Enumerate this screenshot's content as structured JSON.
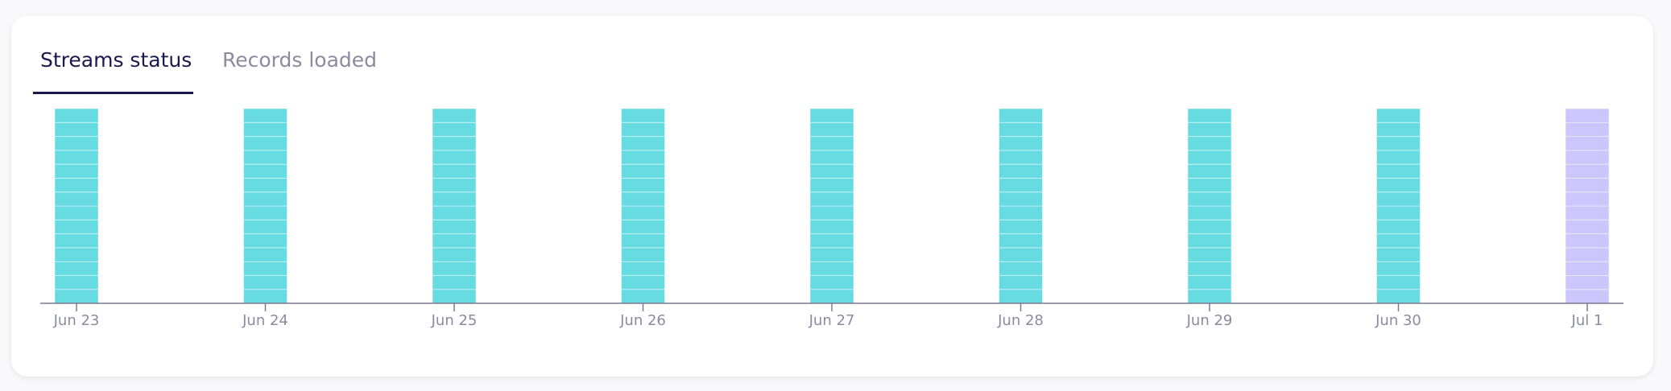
{
  "tabs": [
    "Streams status",
    "Records loaded"
  ],
  "chart_data": {
    "type": "bar",
    "stacked": true,
    "categories": [
      "Jun 23",
      "Jun 24",
      "Jun 25",
      "Jun 26",
      "Jun 27",
      "Jun 28",
      "Jun 29",
      "Jun 30",
      "Jul 1"
    ],
    "category_colors": [
      "#67dbe2",
      "#67dbe2",
      "#67dbe2",
      "#67dbe2",
      "#67dbe2",
      "#67dbe2",
      "#67dbe2",
      "#67dbe2",
      "#cbc6fb"
    ],
    "series": [
      {
        "values": [
          1,
          1,
          1,
          1,
          1,
          1,
          1,
          1,
          1
        ]
      },
      {
        "values": [
          1,
          1,
          1,
          1,
          1,
          1,
          1,
          1,
          1
        ]
      },
      {
        "values": [
          1,
          1,
          1,
          1,
          1,
          1,
          1,
          1,
          1
        ]
      },
      {
        "values": [
          1,
          1,
          1,
          1,
          1,
          1,
          1,
          1,
          1
        ]
      },
      {
        "values": [
          1,
          1,
          1,
          1,
          1,
          1,
          1,
          1,
          1
        ]
      },
      {
        "values": [
          1,
          1,
          1,
          1,
          1,
          1,
          1,
          1,
          1
        ]
      },
      {
        "values": [
          1,
          1,
          1,
          1,
          1,
          1,
          1,
          1,
          1
        ]
      },
      {
        "values": [
          1,
          1,
          1,
          1,
          1,
          1,
          1,
          1,
          1
        ]
      },
      {
        "values": [
          1,
          1,
          1,
          1,
          1,
          1,
          1,
          1,
          1
        ]
      },
      {
        "values": [
          1,
          1,
          1,
          1,
          1,
          1,
          1,
          1,
          1
        ]
      },
      {
        "values": [
          1,
          1,
          1,
          1,
          1,
          1,
          1,
          1,
          1
        ]
      },
      {
        "values": [
          1,
          1,
          1,
          1,
          1,
          1,
          1,
          1,
          1
        ]
      },
      {
        "values": [
          1,
          1,
          1,
          1,
          1,
          1,
          1,
          1,
          1
        ]
      },
      {
        "values": [
          1,
          1,
          1,
          1,
          1,
          1,
          1,
          1,
          1
        ]
      }
    ],
    "ylim": [
      0,
      14
    ]
  }
}
